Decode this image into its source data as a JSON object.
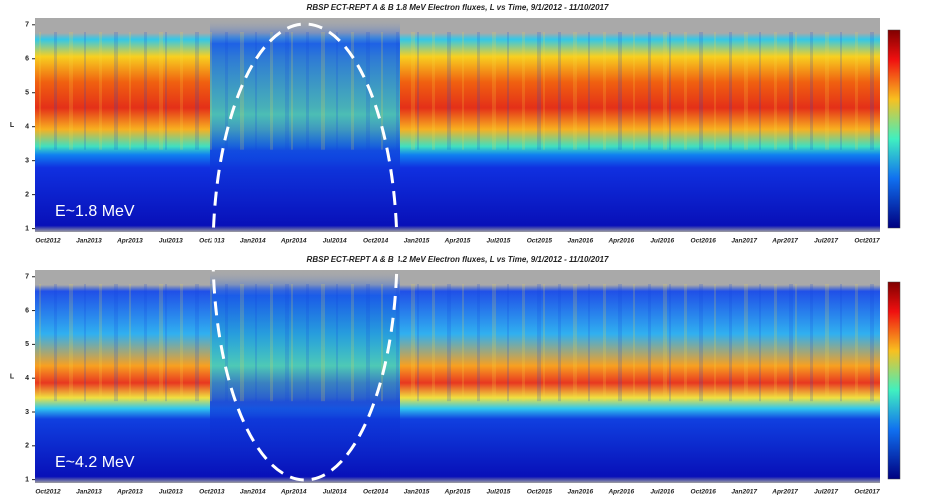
{
  "chart_data": [
    {
      "type": "spectrogram",
      "title": "RBSP ECT-REPT A & B  1.8 MeV Electron fluxes, L vs Time, 9/1/2012 - 11/10/2017",
      "ylabel": "L",
      "annotation": "E~1.8 MeV",
      "categories": [
        "Oct2012",
        "Jan2013",
        "Apr2013",
        "Jul2013",
        "Oct2013",
        "Jan2014",
        "Apr2014",
        "Jul2014",
        "Oct2014",
        "Jan2015",
        "Apr2015",
        "Jul2015",
        "Oct2015",
        "Jan2016",
        "Apr2016",
        "Jul2016",
        "Oct2016",
        "Jan2017",
        "Apr2017",
        "Jul2017",
        "Oct2017"
      ],
      "ylim": [
        0.9,
        7.2
      ],
      "yticks": [
        1,
        2,
        3,
        4,
        5,
        6,
        7
      ]
    },
    {
      "type": "spectrogram",
      "title": "RBSP ECT-REPT A & B  4.2 MeV Electron fluxes, L vs Time, 9/1/2012 - 11/10/2017",
      "ylabel": "L",
      "annotation": "E~4.2 MeV",
      "categories": [
        "Oct2012",
        "Jan2013",
        "Apr2013",
        "Jul2013",
        "Oct2013",
        "Jan2014",
        "Apr2014",
        "Jul2014",
        "Oct2014",
        "Jan2015",
        "Apr2015",
        "Jul2015",
        "Oct2015",
        "Jan2016",
        "Apr2016",
        "Jul2016",
        "Oct2016",
        "Jan2017",
        "Apr2017",
        "Jul2017",
        "Oct2017"
      ],
      "ylim": [
        0.9,
        7.2
      ],
      "yticks": [
        1,
        2,
        3,
        4,
        5,
        6,
        7
      ]
    }
  ]
}
